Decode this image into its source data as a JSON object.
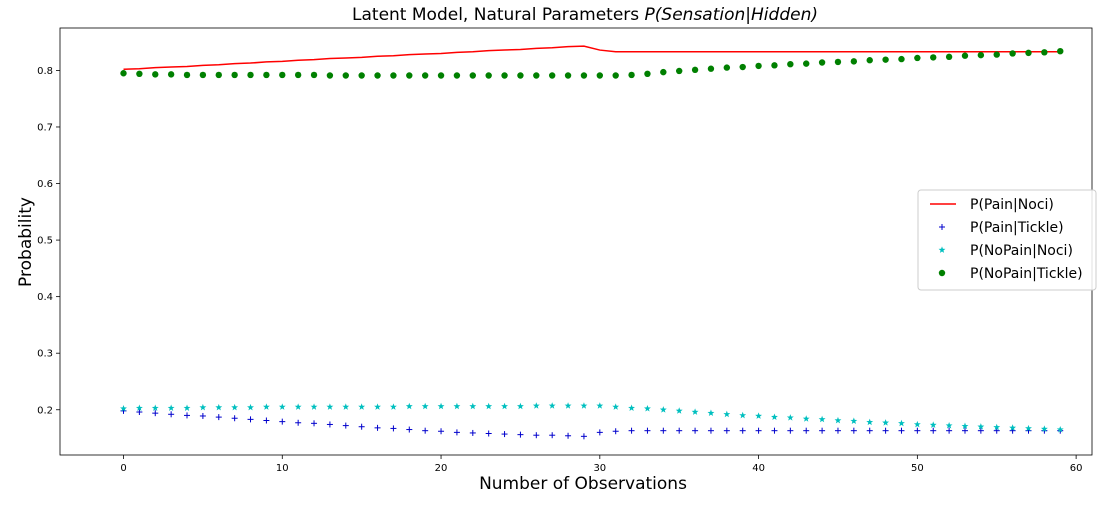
{
  "chart_data": {
    "type": "line",
    "title_prefix": "Latent Model, Natural Parameters ",
    "title_math": "P(Sensation|Hidden)",
    "xlabel": "Number of Observations",
    "ylabel": "Probability",
    "xlim": [
      -4,
      61
    ],
    "ylim": [
      0.12,
      0.875
    ],
    "x_ticks": [
      0,
      10,
      20,
      30,
      40,
      50,
      60
    ],
    "y_ticks": [
      0.2,
      0.3,
      0.4,
      0.5,
      0.6,
      0.7,
      0.8
    ],
    "x_tick_labels": [
      "0",
      "10",
      "20",
      "30",
      "40",
      "50",
      "60"
    ],
    "y_tick_labels": [
      "0.2",
      "0.3",
      "0.4",
      "0.5",
      "0.6",
      "0.7",
      "0.8"
    ],
    "legend_position": "right",
    "x": [
      0,
      1,
      2,
      3,
      4,
      5,
      6,
      7,
      8,
      9,
      10,
      11,
      12,
      13,
      14,
      15,
      16,
      17,
      18,
      19,
      20,
      21,
      22,
      23,
      24,
      25,
      26,
      27,
      28,
      29,
      30,
      31,
      32,
      33,
      34,
      35,
      36,
      37,
      38,
      39,
      40,
      41,
      42,
      43,
      44,
      45,
      46,
      47,
      48,
      49,
      50,
      51,
      52,
      53,
      54,
      55,
      56,
      57,
      58,
      59
    ],
    "series": [
      {
        "name": "P(Pain|Noci)",
        "style": "line",
        "color": "#ff0000",
        "values": [
          0.802,
          0.803,
          0.805,
          0.806,
          0.807,
          0.809,
          0.81,
          0.812,
          0.813,
          0.815,
          0.816,
          0.818,
          0.819,
          0.821,
          0.822,
          0.823,
          0.825,
          0.826,
          0.828,
          0.829,
          0.83,
          0.832,
          0.833,
          0.835,
          0.836,
          0.837,
          0.839,
          0.84,
          0.842,
          0.843,
          0.836,
          0.833,
          0.833,
          0.833,
          0.833,
          0.833,
          0.833,
          0.833,
          0.833,
          0.833,
          0.833,
          0.833,
          0.833,
          0.833,
          0.833,
          0.833,
          0.833,
          0.833,
          0.833,
          0.833,
          0.833,
          0.833,
          0.833,
          0.833,
          0.833,
          0.833,
          0.833,
          0.833,
          0.833,
          0.833
        ]
      },
      {
        "name": "P(Pain|Tickle)",
        "style": "plus",
        "color": "#0000cc",
        "values": [
          0.198,
          0.196,
          0.194,
          0.192,
          0.19,
          0.189,
          0.187,
          0.185,
          0.183,
          0.181,
          0.179,
          0.177,
          0.176,
          0.174,
          0.172,
          0.17,
          0.168,
          0.167,
          0.165,
          0.163,
          0.162,
          0.16,
          0.159,
          0.158,
          0.157,
          0.156,
          0.155,
          0.155,
          0.154,
          0.153,
          0.16,
          0.162,
          0.163,
          0.163,
          0.163,
          0.163,
          0.163,
          0.163,
          0.163,
          0.163,
          0.163,
          0.163,
          0.163,
          0.163,
          0.163,
          0.163,
          0.163,
          0.163,
          0.163,
          0.163,
          0.163,
          0.163,
          0.163,
          0.163,
          0.163,
          0.163,
          0.163,
          0.163,
          0.163,
          0.163
        ]
      },
      {
        "name": "P(NoPain|Noci)",
        "style": "star",
        "color": "#00bfbf",
        "values": [
          0.202,
          0.203,
          0.203,
          0.203,
          0.203,
          0.204,
          0.204,
          0.204,
          0.204,
          0.205,
          0.205,
          0.205,
          0.205,
          0.205,
          0.205,
          0.205,
          0.205,
          0.205,
          0.206,
          0.206,
          0.206,
          0.206,
          0.206,
          0.206,
          0.206,
          0.206,
          0.207,
          0.207,
          0.207,
          0.207,
          0.207,
          0.205,
          0.203,
          0.202,
          0.2,
          0.198,
          0.196,
          0.194,
          0.192,
          0.19,
          0.189,
          0.187,
          0.186,
          0.184,
          0.183,
          0.181,
          0.18,
          0.178,
          0.177,
          0.176,
          0.174,
          0.173,
          0.172,
          0.171,
          0.17,
          0.169,
          0.168,
          0.167,
          0.166,
          0.165
        ]
      },
      {
        "name": "P(NoPain|Tickle)",
        "style": "dot",
        "color": "#008000",
        "values": [
          0.795,
          0.794,
          0.793,
          0.793,
          0.792,
          0.792,
          0.792,
          0.792,
          0.792,
          0.792,
          0.792,
          0.792,
          0.792,
          0.791,
          0.791,
          0.791,
          0.791,
          0.791,
          0.791,
          0.791,
          0.791,
          0.791,
          0.791,
          0.791,
          0.791,
          0.791,
          0.791,
          0.791,
          0.791,
          0.791,
          0.791,
          0.791,
          0.792,
          0.794,
          0.797,
          0.799,
          0.801,
          0.803,
          0.805,
          0.806,
          0.808,
          0.809,
          0.811,
          0.812,
          0.814,
          0.815,
          0.816,
          0.818,
          0.819,
          0.82,
          0.822,
          0.823,
          0.824,
          0.826,
          0.827,
          0.828,
          0.83,
          0.831,
          0.832,
          0.834
        ]
      }
    ]
  }
}
